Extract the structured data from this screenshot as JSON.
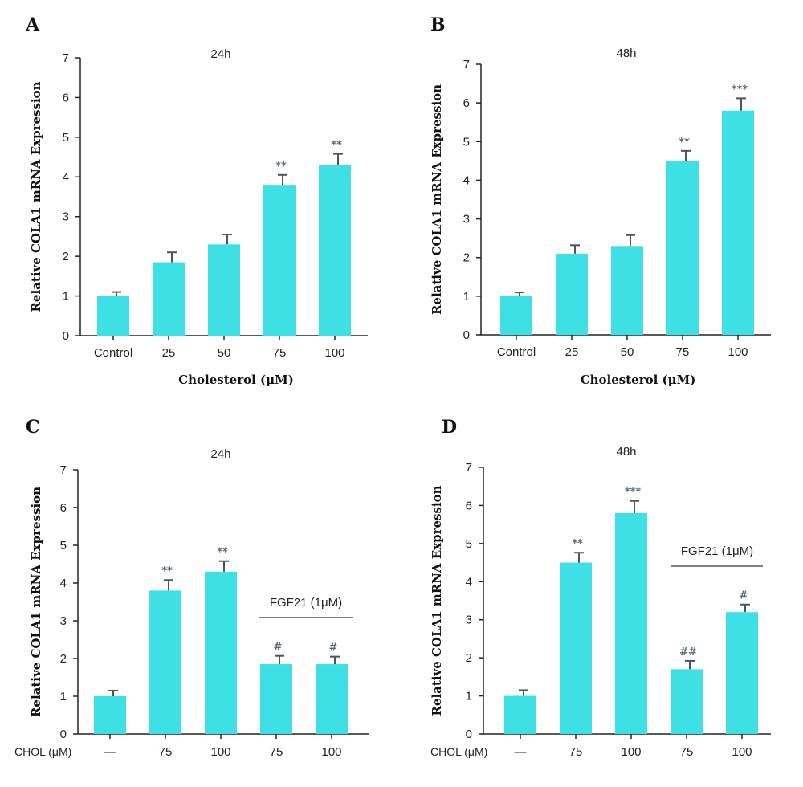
{
  "chart_data": [
    {
      "panel": "A",
      "type": "bar",
      "title": "24h",
      "ylabel": "Relative COLA1 mRNA Expression",
      "xlabel": "Cholesterol (μM)",
      "ylim": [
        0,
        7
      ],
      "yticks": [
        0,
        1,
        2,
        3,
        4,
        5,
        6,
        7
      ],
      "categories": [
        "Control",
        "25",
        "50",
        "75",
        "100"
      ],
      "values": [
        1.0,
        1.85,
        2.3,
        3.8,
        4.3
      ],
      "errors": [
        0.1,
        0.25,
        0.25,
        0.25,
        0.28
      ],
      "annotations": [
        "",
        "",
        "",
        "**",
        "**"
      ],
      "bar_color": "#3ee0e6"
    },
    {
      "panel": "B",
      "type": "bar",
      "title": "48h",
      "ylabel": "Relative COLA1 mRNA Expression",
      "xlabel": "Cholesterol (μM)",
      "ylim": [
        0,
        7
      ],
      "yticks": [
        0,
        1,
        2,
        3,
        4,
        5,
        6,
        7
      ],
      "categories": [
        "Control",
        "25",
        "50",
        "75",
        "100"
      ],
      "values": [
        1.0,
        2.1,
        2.3,
        4.5,
        5.8
      ],
      "errors": [
        0.1,
        0.22,
        0.28,
        0.26,
        0.32
      ],
      "annotations": [
        "",
        "",
        "",
        "**",
        "***"
      ],
      "bar_color": "#3ee0e6"
    },
    {
      "panel": "C",
      "type": "bar",
      "title": "24h",
      "ylabel": "Relative COLA1 mRNA Expression",
      "row_label": "CHOL (μM)",
      "ylim": [
        0,
        7
      ],
      "yticks": [
        0,
        1,
        2,
        3,
        4,
        5,
        6,
        7
      ],
      "categories": [
        "—",
        "75",
        "100",
        "75",
        "100"
      ],
      "values": [
        1.0,
        3.8,
        4.3,
        1.85,
        1.85
      ],
      "errors": [
        0.15,
        0.28,
        0.28,
        0.22,
        0.2
      ],
      "annotations": [
        "",
        "**",
        "**",
        "#",
        "#"
      ],
      "group_label": "FGF21 (1μM)",
      "group_span": [
        3,
        4
      ],
      "bar_color": "#3ee0e6"
    },
    {
      "panel": "D",
      "type": "bar",
      "title": "48h",
      "ylabel": "Relative COLA1 mRNA Expression",
      "row_label": "CHOL (μM)",
      "ylim": [
        0,
        7
      ],
      "yticks": [
        0,
        1,
        2,
        3,
        4,
        5,
        6,
        7
      ],
      "categories": [
        "—",
        "75",
        "100",
        "75",
        "100"
      ],
      "values": [
        1.0,
        4.5,
        5.8,
        1.7,
        3.2
      ],
      "errors": [
        0.15,
        0.26,
        0.32,
        0.22,
        0.2
      ],
      "annotations": [
        "",
        "**",
        "***",
        "##",
        "#"
      ],
      "group_label": "FGF21 (1μM)",
      "group_span": [
        3,
        4
      ],
      "bar_color": "#3ee0e6"
    }
  ]
}
